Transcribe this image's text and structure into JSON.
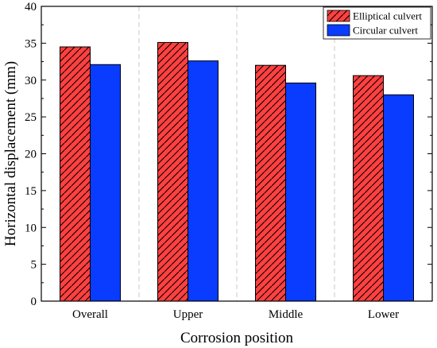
{
  "chart_data": {
    "type": "bar",
    "categories": [
      "Overall",
      "Upper",
      "Middle",
      "Lower"
    ],
    "series": [
      {
        "name": "Elliptical culvert",
        "values": [
          34.5,
          35.1,
          32.0,
          30.6
        ],
        "color": "#ff4040",
        "pattern": "hatched"
      },
      {
        "name": "Circular culvert",
        "values": [
          32.1,
          32.6,
          29.6,
          28.0
        ],
        "color": "#0a3cff",
        "pattern": "solid"
      }
    ],
    "xlabel": "Corrosion position",
    "ylabel": "Horizontal displacement (mm)",
    "ylim": [
      0,
      40
    ],
    "yticks": [
      0,
      5,
      10,
      15,
      20,
      25,
      30,
      35,
      40
    ],
    "category_separators": "dashed grey vertical lines",
    "grid": false,
    "legend_position": "top-right"
  }
}
